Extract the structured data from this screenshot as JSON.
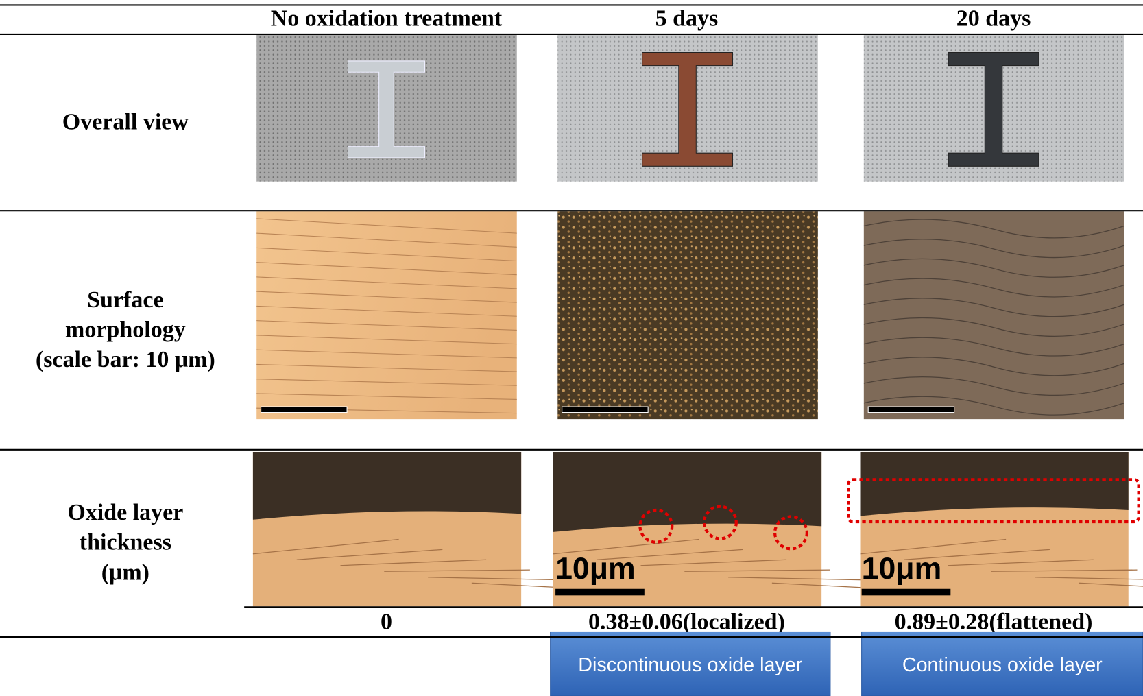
{
  "table": {
    "header": [
      "No oxidation treatment",
      "5 days",
      "20 days"
    ],
    "rows": [
      {
        "label": [
          "Overall view"
        ]
      },
      {
        "label": [
          "Surface",
          "morphology",
          "(scale bar: 10 μm)"
        ]
      },
      {
        "label": [
          "Oxide layer",
          "thickness",
          "(μm)"
        ],
        "values": [
          "0",
          "0.38±0.06(localized)",
          "0.89±0.28(flattened)"
        ],
        "scale_labels": [
          "10μm",
          "10μm"
        ]
      }
    ]
  },
  "callouts": [
    "Discontinuous oxide layer",
    "Continuous oxide layer"
  ]
}
